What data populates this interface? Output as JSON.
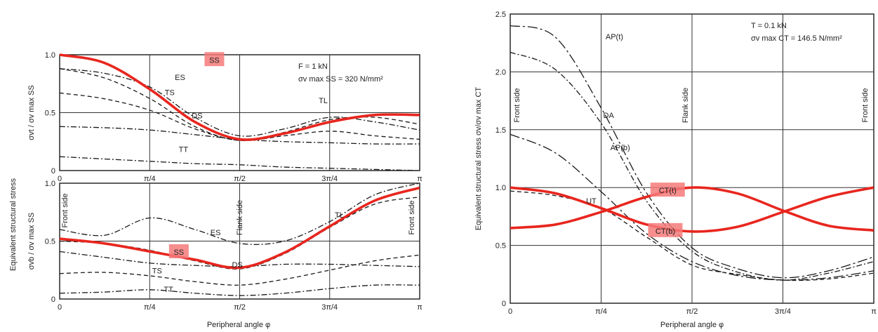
{
  "colors": {
    "ink": "#1a1a1a",
    "highlight": "#e8261e",
    "label_box": "#f47a7a",
    "grid": "#333333"
  },
  "chart_data": [
    {
      "id": "left-top",
      "type": "line",
      "xlabel": "",
      "ylabel": "σvt / σv max SS",
      "xlim": [
        0,
        3.14159
      ],
      "ylim": [
        0,
        1.0
      ],
      "xticks": [
        "0",
        "π/4",
        "π/2",
        "3π/4",
        "π"
      ],
      "yticks": [
        "0",
        "0.5",
        "1.0"
      ],
      "annotations": [
        "F = 1 kN",
        "σv max SS = 320 N/mm²"
      ],
      "grid": true,
      "series": [
        {
          "name": "SS",
          "style": "red",
          "highlighted": true,
          "points": [
            [
              0,
              1.0
            ],
            [
              0.39,
              0.93
            ],
            [
              0.79,
              0.7
            ],
            [
              1.18,
              0.42
            ],
            [
              1.57,
              0.27
            ],
            [
              1.96,
              0.32
            ],
            [
              2.36,
              0.42
            ],
            [
              2.75,
              0.48
            ],
            [
              3.14,
              0.48
            ]
          ]
        },
        {
          "name": "TL",
          "style": "dashdot",
          "points": [
            [
              0,
              0.88
            ],
            [
              0.39,
              0.84
            ],
            [
              0.79,
              0.72
            ],
            [
              1.18,
              0.46
            ],
            [
              1.57,
              0.3
            ],
            [
              1.96,
              0.36
            ],
            [
              2.36,
              0.46
            ],
            [
              2.75,
              0.42
            ],
            [
              3.14,
              0.35
            ]
          ]
        },
        {
          "name": "ES",
          "style": "dash",
          "points": [
            [
              0,
              0.88
            ],
            [
              0.39,
              0.8
            ],
            [
              0.79,
              0.62
            ],
            [
              1.18,
              0.38
            ],
            [
              1.57,
              0.26
            ],
            [
              1.96,
              0.33
            ],
            [
              2.36,
              0.44
            ],
            [
              2.75,
              0.46
            ],
            [
              3.14,
              0.4
            ]
          ]
        },
        {
          "name": "TS",
          "style": "dash",
          "points": [
            [
              0,
              0.67
            ],
            [
              0.39,
              0.62
            ],
            [
              0.79,
              0.52
            ],
            [
              1.18,
              0.36
            ],
            [
              1.57,
              0.26
            ],
            [
              1.96,
              0.3
            ],
            [
              2.36,
              0.34
            ],
            [
              2.75,
              0.3
            ],
            [
              3.14,
              0.27
            ]
          ]
        },
        {
          "name": "DS",
          "style": "dashdot",
          "points": [
            [
              0,
              0.38
            ],
            [
              0.39,
              0.37
            ],
            [
              0.79,
              0.35
            ],
            [
              1.18,
              0.31
            ],
            [
              1.57,
              0.27
            ],
            [
              1.96,
              0.25
            ],
            [
              2.36,
              0.24
            ],
            [
              2.75,
              0.23
            ],
            [
              3.14,
              0.23
            ]
          ]
        },
        {
          "name": "TT",
          "style": "dashdot",
          "points": [
            [
              0,
              0.12
            ],
            [
              0.39,
              0.1
            ],
            [
              0.79,
              0.08
            ],
            [
              1.18,
              0.06
            ],
            [
              1.57,
              0.05
            ],
            [
              1.96,
              0.03
            ],
            [
              2.36,
              0.02
            ],
            [
              2.75,
              0.01
            ],
            [
              3.14,
              0.0
            ]
          ]
        }
      ]
    },
    {
      "id": "left-bottom",
      "type": "line",
      "xlabel": "Peripheral angle φ",
      "ylabel": "σvb / σv max SS",
      "xlim": [
        0,
        3.14159
      ],
      "ylim": [
        0,
        1.0
      ],
      "xticks": [
        "0",
        "π/4",
        "π/2",
        "3π/4",
        "π"
      ],
      "yticks": [
        "0",
        "0.5",
        "1.0"
      ],
      "annotations": [
        "Front side",
        "Flank side",
        "Front side"
      ],
      "grid": true,
      "series": [
        {
          "name": "SS",
          "style": "red",
          "highlighted": true,
          "points": [
            [
              0,
              0.52
            ],
            [
              0.39,
              0.48
            ],
            [
              0.79,
              0.41
            ],
            [
              1.18,
              0.34
            ],
            [
              1.57,
              0.27
            ],
            [
              1.96,
              0.4
            ],
            [
              2.36,
              0.63
            ],
            [
              2.75,
              0.85
            ],
            [
              3.14,
              0.96
            ]
          ]
        },
        {
          "name": "TL",
          "style": "dashdot",
          "points": [
            [
              0,
              0.6
            ],
            [
              0.39,
              0.55
            ],
            [
              0.79,
              0.7
            ],
            [
              1.18,
              0.6
            ],
            [
              1.57,
              0.48
            ],
            [
              1.96,
              0.5
            ],
            [
              2.36,
              0.67
            ],
            [
              2.75,
              0.9
            ],
            [
              3.14,
              1.0
            ]
          ]
        },
        {
          "name": "ES",
          "style": "dash",
          "points": [
            [
              0,
              0.5
            ],
            [
              0.39,
              0.48
            ],
            [
              0.79,
              0.42
            ],
            [
              1.18,
              0.33
            ],
            [
              1.57,
              0.26
            ],
            [
              1.96,
              0.39
            ],
            [
              2.36,
              0.62
            ],
            [
              2.75,
              0.82
            ],
            [
              3.14,
              0.88
            ]
          ]
        },
        {
          "name": "TS",
          "style": "dash",
          "points": [
            [
              0,
              0.22
            ],
            [
              0.39,
              0.23
            ],
            [
              0.79,
              0.2
            ],
            [
              1.18,
              0.15
            ],
            [
              1.57,
              0.12
            ],
            [
              1.96,
              0.17
            ],
            [
              2.36,
              0.25
            ],
            [
              2.75,
              0.33
            ],
            [
              3.14,
              0.38
            ]
          ]
        },
        {
          "name": "DS",
          "style": "dashdot",
          "points": [
            [
              0,
              0.41
            ],
            [
              0.39,
              0.36
            ],
            [
              0.79,
              0.31
            ],
            [
              1.18,
              0.29
            ],
            [
              1.57,
              0.28
            ],
            [
              1.96,
              0.3
            ],
            [
              2.36,
              0.3
            ],
            [
              2.75,
              0.29
            ],
            [
              3.14,
              0.28
            ]
          ]
        },
        {
          "name": "TT",
          "style": "dashdot",
          "points": [
            [
              0,
              0.05
            ],
            [
              0.39,
              0.06
            ],
            [
              0.79,
              0.08
            ],
            [
              1.18,
              0.05
            ],
            [
              1.57,
              0.03
            ],
            [
              1.96,
              0.05
            ],
            [
              2.36,
              0.09
            ],
            [
              2.75,
              0.12
            ],
            [
              3.14,
              0.12
            ]
          ]
        }
      ]
    },
    {
      "id": "right",
      "type": "line",
      "xlabel": "Peripheral angle φ",
      "ylabel": "Equivalent structural stress σv/σv max CT",
      "xlim": [
        0,
        3.14159
      ],
      "ylim": [
        0,
        2.5
      ],
      "xticks": [
        "0",
        "π/4",
        "π/2",
        "3π/4",
        "π"
      ],
      "yticks": [
        "0",
        "0.5",
        "1.0",
        "1.5",
        "2.0",
        "2.5"
      ],
      "annotations": [
        "T = 0.1 kN",
        "σv max CT = 146.5 N/mm²",
        "Front side",
        "Flank side",
        "Front side"
      ],
      "grid": true,
      "series": [
        {
          "name": "CT(t)",
          "style": "red",
          "highlighted": true,
          "points": [
            [
              0,
              1.0
            ],
            [
              0.39,
              0.95
            ],
            [
              0.79,
              0.82
            ],
            [
              1.18,
              0.68
            ],
            [
              1.57,
              0.62
            ],
            [
              1.96,
              0.66
            ],
            [
              2.36,
              0.79
            ],
            [
              2.75,
              0.92
            ],
            [
              3.14,
              1.0
            ]
          ]
        },
        {
          "name": "CT(b)",
          "style": "red",
          "highlighted": true,
          "points": [
            [
              0,
              0.65
            ],
            [
              0.39,
              0.68
            ],
            [
              0.79,
              0.79
            ],
            [
              1.18,
              0.92
            ],
            [
              1.57,
              1.0
            ],
            [
              1.96,
              0.95
            ],
            [
              2.36,
              0.8
            ],
            [
              2.75,
              0.67
            ],
            [
              3.14,
              0.63
            ]
          ]
        },
        {
          "name": "AP(t)",
          "style": "longdash",
          "points": [
            [
              0,
              2.4
            ],
            [
              0.39,
              2.3
            ],
            [
              0.79,
              1.68
            ],
            [
              1.18,
              0.95
            ],
            [
              1.57,
              0.48
            ],
            [
              1.96,
              0.3
            ],
            [
              2.36,
              0.22
            ],
            [
              2.75,
              0.28
            ],
            [
              3.14,
              0.4
            ]
          ]
        },
        {
          "name": "DA",
          "style": "dashdot",
          "points": [
            [
              0,
              2.17
            ],
            [
              0.39,
              2.02
            ],
            [
              0.79,
              1.55
            ],
            [
              1.18,
              0.88
            ],
            [
              1.57,
              0.45
            ],
            [
              1.96,
              0.27
            ],
            [
              2.36,
              0.2
            ],
            [
              2.75,
              0.26
            ],
            [
              3.14,
              0.36
            ]
          ]
        },
        {
          "name": "AP(b)",
          "style": "longdash",
          "points": [
            [
              0,
              1.46
            ],
            [
              0.39,
              1.3
            ],
            [
              0.79,
              0.96
            ],
            [
              1.18,
              0.6
            ],
            [
              1.57,
              0.36
            ],
            [
              1.96,
              0.24
            ],
            [
              2.36,
              0.2
            ],
            [
              2.75,
              0.22
            ],
            [
              3.14,
              0.28
            ]
          ]
        },
        {
          "name": "UT",
          "style": "dash",
          "points": [
            [
              0,
              0.97
            ],
            [
              0.39,
              0.93
            ],
            [
              0.79,
              0.82
            ],
            [
              1.18,
              0.57
            ],
            [
              1.57,
              0.33
            ],
            [
              1.96,
              0.25
            ],
            [
              2.36,
              0.2
            ],
            [
              2.75,
              0.21
            ],
            [
              3.14,
              0.26
            ]
          ]
        }
      ]
    }
  ],
  "shared_labels": {
    "left_ylabel": "Equivalent structural stress",
    "left_xlabel": "Peripheral angle φ",
    "right_xlabel": "Peripheral angle φ"
  }
}
